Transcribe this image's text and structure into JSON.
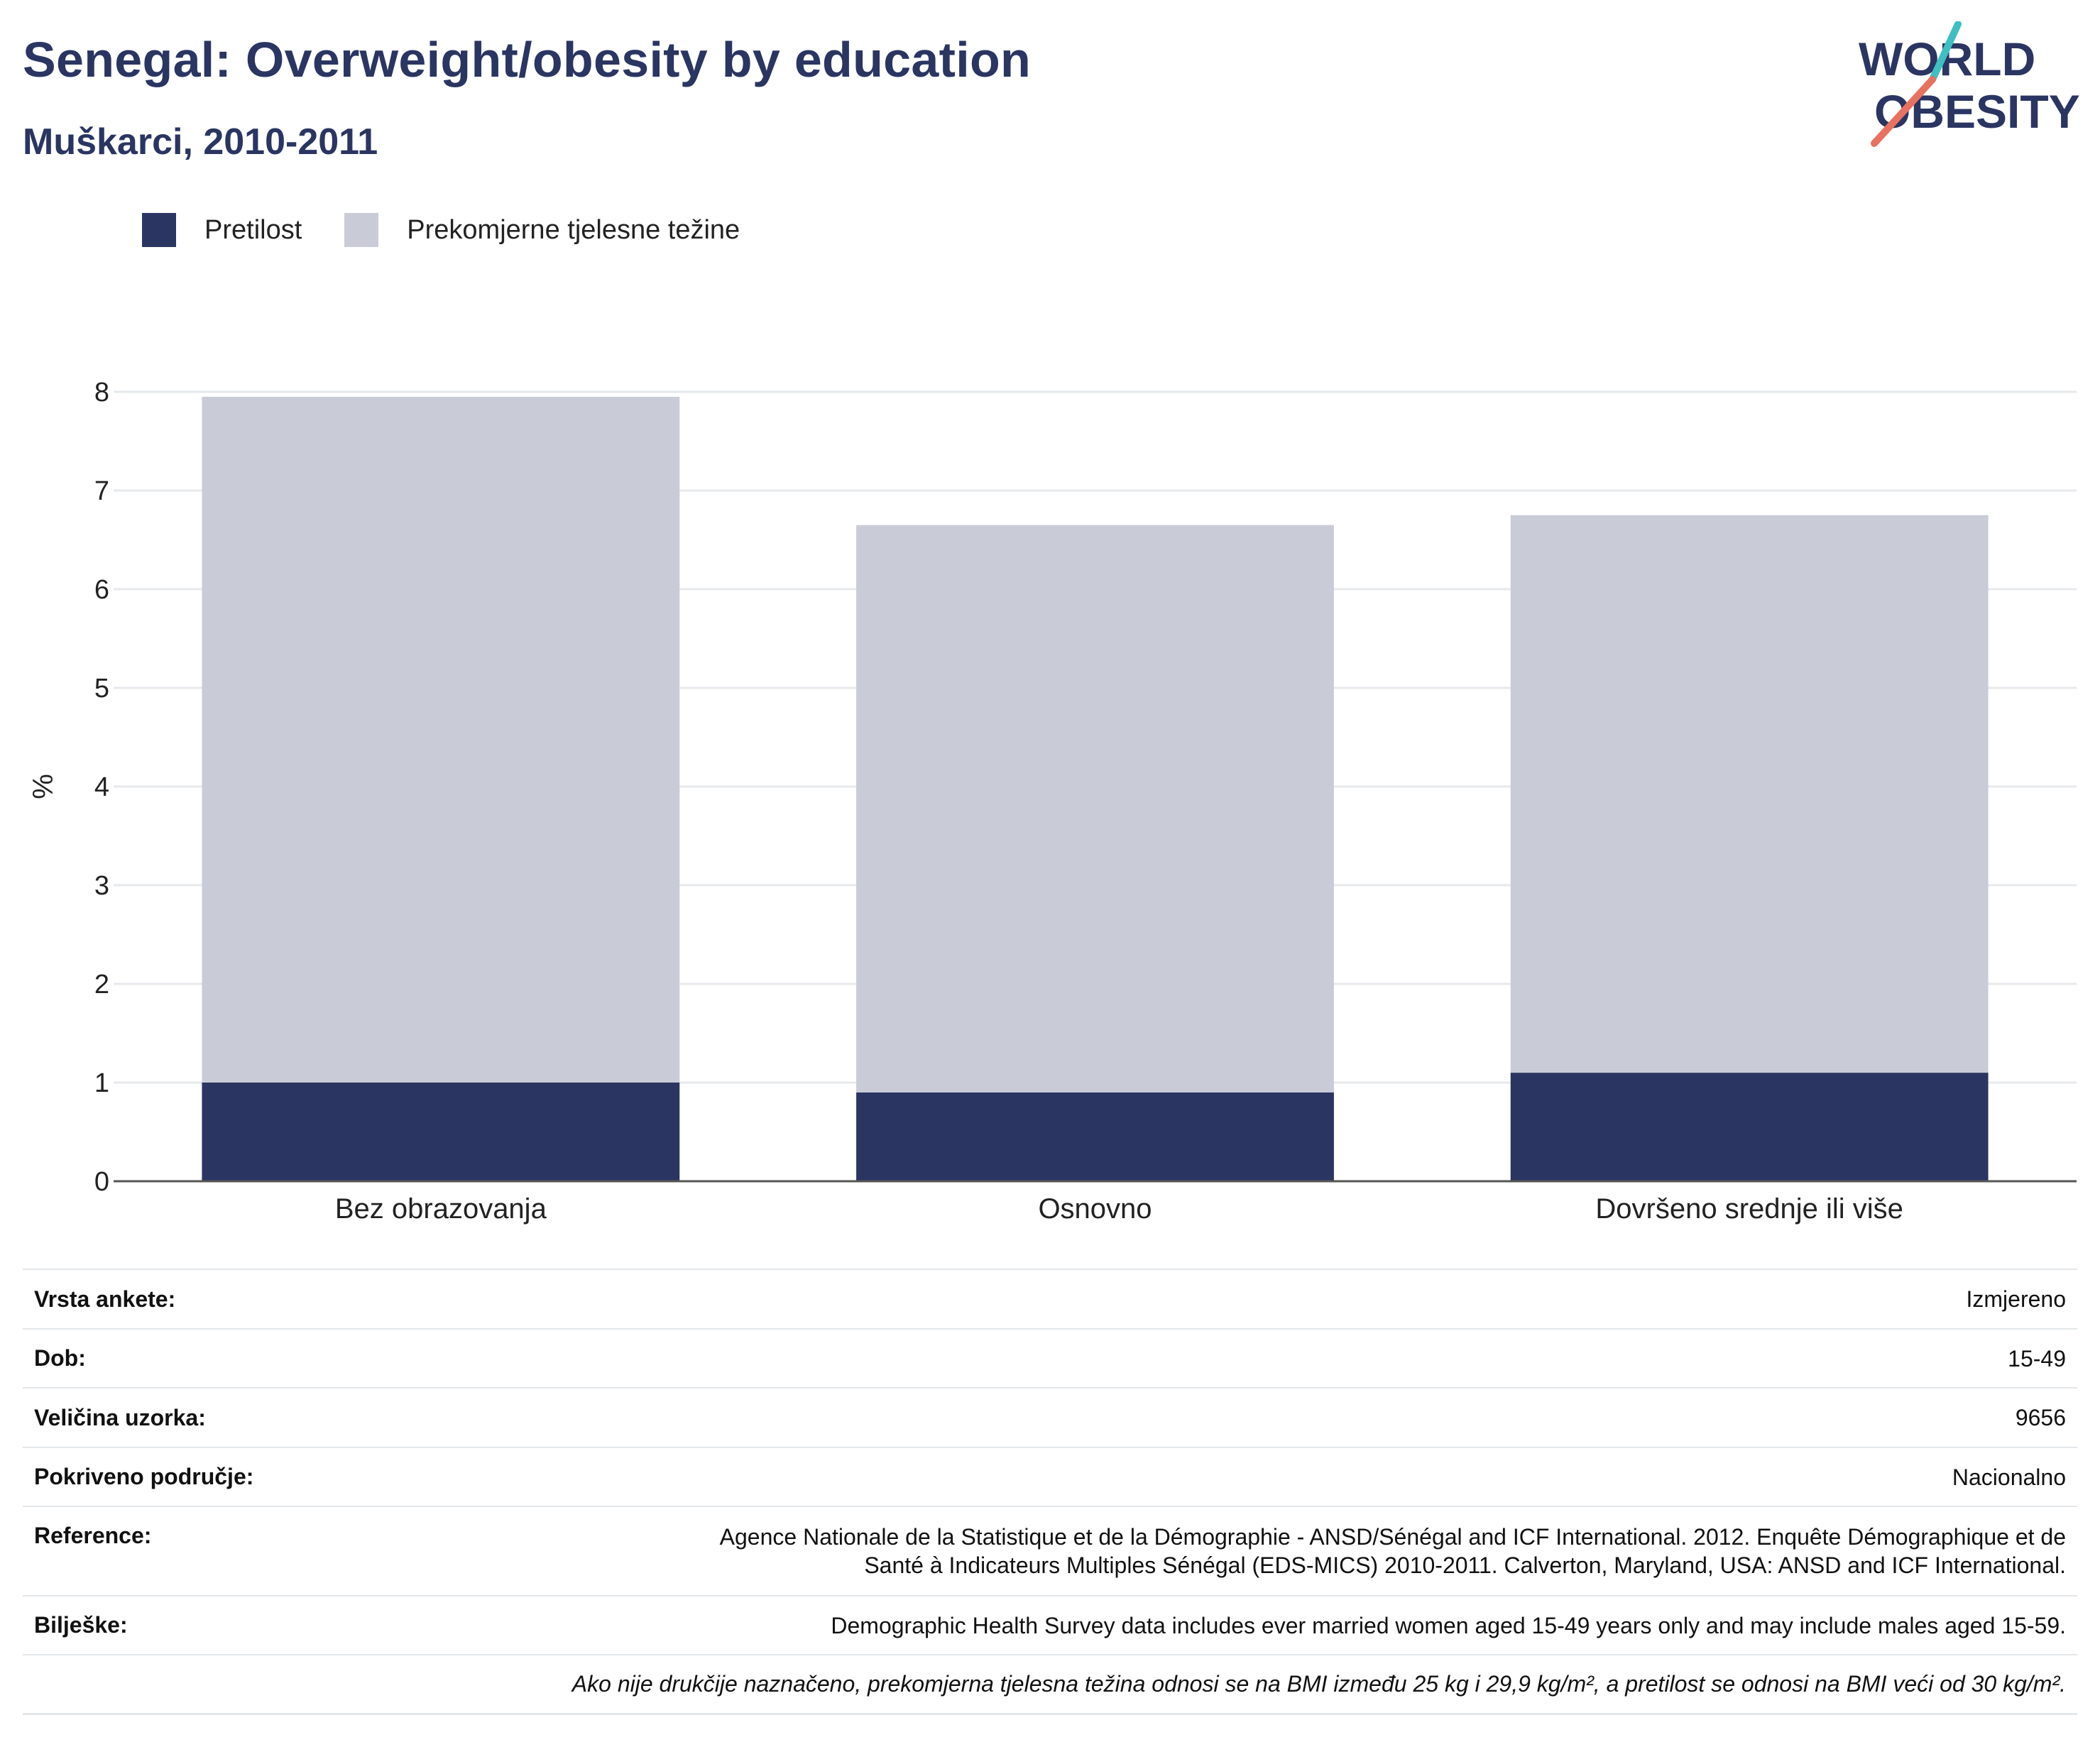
{
  "header": {
    "title": "Senegal: Overweight/obesity by education",
    "subtitle": "Muškarci, 2010-2011"
  },
  "logo": {
    "line1": "WORLD",
    "line2": "OBESITY",
    "icon": "world-obesity-logo"
  },
  "legend": [
    {
      "label": "Pretilost",
      "color": "#2a3562"
    },
    {
      "label": "Prekomjerne tjelesne težine",
      "color": "#c9ccd7"
    }
  ],
  "chart_data": {
    "type": "bar",
    "stacked": true,
    "categories": [
      "Bez obrazovanja",
      "Osnovno",
      "Dovršeno srednje ili više"
    ],
    "series": [
      {
        "name": "Pretilost",
        "values": [
          1.0,
          0.9,
          1.1
        ],
        "color": "#2a3562"
      },
      {
        "name": "Prekomjerne tjelesne težine",
        "values": [
          6.95,
          5.75,
          5.65
        ],
        "color": "#c9ccd7"
      }
    ],
    "ylabel": "%",
    "ylim": [
      0,
      8
    ],
    "yticks": [
      "0",
      "1",
      "2",
      "3",
      "4",
      "5",
      "6",
      "7",
      "8"
    ],
    "grid": true,
    "legend_position": "top-left"
  },
  "info": {
    "rows": [
      {
        "key": "Vrsta ankete:",
        "value": "Izmjereno"
      },
      {
        "key": "Dob:",
        "value": "15-49"
      },
      {
        "key": "Veličina uzorka:",
        "value": "9656"
      },
      {
        "key": "Pokriveno područje:",
        "value": "Nacionalno"
      },
      {
        "key": "Reference:",
        "value_line1": "Agence Nationale de la Statistique et de la Démographie - ANSD/Sénégal and ICF International. 2012. Enquête Démographique et de",
        "value_line2": "Santé à Indicateurs Multiples Sénégal (EDS-MICS) 2010-2011. Calverton, Maryland, USA: ANSD and ICF International."
      },
      {
        "key": "Bilješke:",
        "value": "Demographic Health Survey data includes ever married women aged 15-49 years only and may include males aged 15-59."
      }
    ],
    "footnote": "Ako nije drukčije naznačeno, prekomjerna tjelesna težina odnosi se na BMI između 25 kg i 29,9 kg/m², a pretilost se odnosi na BMI veći od 30 kg/m²."
  }
}
